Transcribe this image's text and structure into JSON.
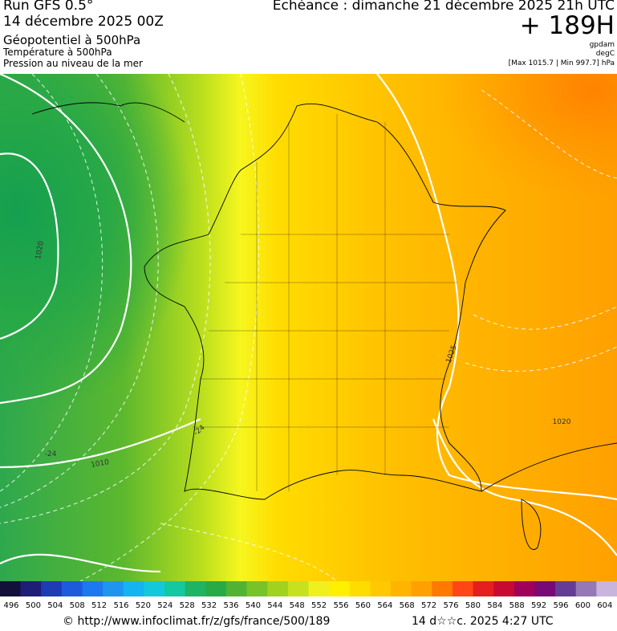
{
  "header": {
    "left": [
      "Run GFS 0.5°",
      "14 décembre 2025 00Z",
      "Géopotentiel à 500hPa",
      "Température à 500hPa",
      "Pression au niveau de la mer"
    ],
    "right": {
      "echeance": "Echéance : dimanche 21 décembre 2025 21h UTC",
      "lead": "+ 189H",
      "units": [
        "gpdam",
        "degC"
      ],
      "extremes": "[Max 1015.7 | Min 997.7] hPa"
    }
  },
  "map": {
    "labels": [
      "1020",
      "1010",
      "1025",
      "1020",
      "-24",
      "-24"
    ]
  },
  "colorbar": {
    "labels": [
      "496",
      "500",
      "504",
      "508",
      "512",
      "516",
      "520",
      "524",
      "528",
      "532",
      "536",
      "540",
      "544",
      "548",
      "552",
      "556",
      "560",
      "564",
      "568",
      "572",
      "576",
      "580",
      "584",
      "588",
      "592",
      "596",
      "600",
      "604"
    ],
    "colors": [
      "#14103c",
      "#1e1e78",
      "#1e3cb4",
      "#1e5adc",
      "#1e78f0",
      "#1e96f0",
      "#14b4f0",
      "#14c8dc",
      "#14c8a0",
      "#1eb464",
      "#28aa46",
      "#50b432",
      "#78c328",
      "#a0d21e",
      "#c8e11e",
      "#f0f01e",
      "#fff000",
      "#ffdc00",
      "#ffc800",
      "#ffb400",
      "#ffa000",
      "#ff7800",
      "#ff4614",
      "#e61e1e",
      "#c80a32",
      "#a0005a",
      "#780a78",
      "#643c96",
      "#9678b4",
      "#c8b4dc"
    ]
  },
  "footer": {
    "url": "© http://www.infoclimat.fr/z/gfs/france/500/189",
    "date": "14 d☆☆c. 2025  4:27 UTC"
  }
}
